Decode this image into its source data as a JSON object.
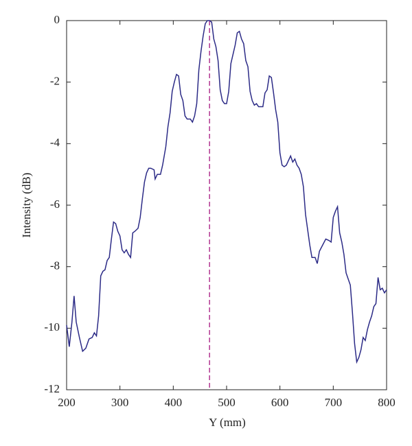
{
  "chart_data": {
    "type": "line",
    "xlabel": "Y (mm)",
    "ylabel": "Intensity (dB)",
    "xlim": [
      200,
      800
    ],
    "xticks": [
      200,
      300,
      400,
      500,
      600,
      700,
      800
    ],
    "ylim": [
      -12,
      0
    ],
    "yticks": [
      -12,
      -10,
      -8,
      -6,
      -4,
      -2,
      0
    ],
    "vline": 468,
    "vline_color": "#b0338f",
    "series": [
      {
        "color": "#2b2a86",
        "x": [
          200,
          205,
          210,
          214,
          218,
          224,
          230,
          236,
          242,
          248,
          252,
          256,
          260,
          264,
          268,
          272,
          276,
          280,
          284,
          288,
          292,
          296,
          300,
          304,
          308,
          312,
          316,
          320,
          324,
          328,
          334,
          338,
          342,
          346,
          350,
          354,
          358,
          364,
          366,
          370,
          376,
          380,
          386,
          390,
          394,
          398,
          402,
          406,
          410,
          414,
          418,
          422,
          426,
          432,
          436,
          440,
          444,
          448,
          452,
          456,
          460,
          464,
          468,
          472,
          476,
          480,
          484,
          488,
          492,
          496,
          500,
          504,
          508,
          512,
          516,
          520,
          524,
          528,
          532,
          536,
          540,
          544,
          548,
          552,
          556,
          560,
          568,
          572,
          576,
          580,
          584,
          588,
          592,
          596,
          600,
          604,
          608,
          612,
          616,
          620,
          624,
          628,
          632,
          636,
          640,
          644,
          648,
          652,
          656,
          660,
          666,
          670,
          674,
          680,
          686,
          692,
          696,
          700,
          704,
          708,
          712,
          716,
          720,
          724,
          728,
          732,
          736,
          740,
          744,
          748,
          752,
          756,
          760,
          764,
          768,
          772,
          776,
          780,
          784,
          788,
          792,
          796,
          800
        ],
        "values": [
          -9.9,
          -10.6,
          -9.8,
          -8.95,
          -9.8,
          -10.3,
          -10.75,
          -10.65,
          -10.35,
          -10.3,
          -10.15,
          -10.25,
          -9.6,
          -8.3,
          -8.15,
          -8.1,
          -7.8,
          -7.7,
          -7.1,
          -6.55,
          -6.6,
          -6.85,
          -7,
          -7.45,
          -7.55,
          -7.45,
          -7.6,
          -7.7,
          -6.9,
          -6.85,
          -6.75,
          -6.4,
          -5.8,
          -5.25,
          -4.95,
          -4.8,
          -4.8,
          -4.85,
          -5.15,
          -5,
          -5,
          -4.7,
          -4.1,
          -3.45,
          -3,
          -2.3,
          -2,
          -1.75,
          -1.8,
          -2.4,
          -2.6,
          -3.1,
          -3.2,
          -3.2,
          -3.3,
          -3.1,
          -2.7,
          -1.6,
          -1,
          -0.5,
          -0.1,
          0,
          0,
          -0.05,
          -0.6,
          -0.85,
          -1.3,
          -2.25,
          -2.6,
          -2.7,
          -2.7,
          -2.3,
          -1.4,
          -1.1,
          -0.8,
          -0.4,
          -0.35,
          -0.6,
          -0.75,
          -1.3,
          -1.5,
          -2.3,
          -2.6,
          -2.75,
          -2.7,
          -2.8,
          -2.8,
          -2.35,
          -2.25,
          -1.8,
          -1.85,
          -2.35,
          -2.9,
          -3.3,
          -4.3,
          -4.7,
          -4.75,
          -4.7,
          -4.55,
          -4.4,
          -4.6,
          -4.5,
          -4.7,
          -4.8,
          -5,
          -5.4,
          -6.3,
          -6.8,
          -7.3,
          -7.7,
          -7.7,
          -7.9,
          -7.5,
          -7.3,
          -7.1,
          -7.15,
          -7.2,
          -6.4,
          -6.2,
          -6.05,
          -6.9,
          -7.2,
          -7.6,
          -8.2,
          -8.4,
          -8.6,
          -9.5,
          -10.5,
          -11.1,
          -10.95,
          -10.7,
          -10.3,
          -10.4,
          -10.05,
          -9.8,
          -9.6,
          -9.3,
          -9.2,
          -8.35,
          -8.75,
          -8.7,
          -8.85,
          -8.75
        ]
      }
    ]
  }
}
